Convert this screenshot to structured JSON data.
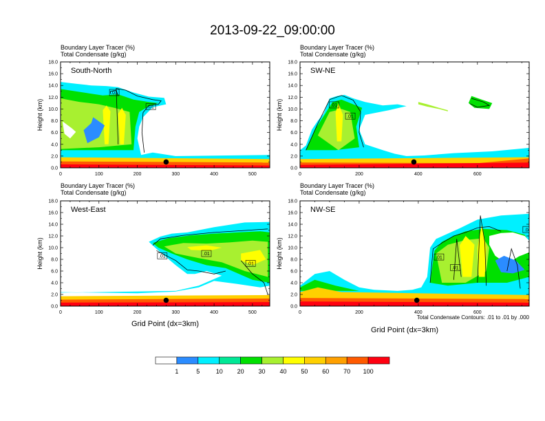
{
  "title": "2013-09-22_09:00:00",
  "panel_header": {
    "line1": "Boundary Layer Tracer   (%)",
    "line2": "Total Condensate   (g/kg)"
  },
  "ylabel": "Height (km)",
  "xlabel": "Grid Point (dx=3km)",
  "contour_note": "Total Condensate Contours: .01 to .01 by .000",
  "contour_label": ".01",
  "colorbar": {
    "colors": [
      "#ffffff",
      "#2b8cff",
      "#00f0ff",
      "#00e896",
      "#00e000",
      "#a8f030",
      "#ffff00",
      "#ffd000",
      "#ffa000",
      "#ff5a00",
      "#ff0010"
    ],
    "labels": [
      "1",
      "5",
      "10",
      "20",
      "30",
      "40",
      "50",
      "60",
      "70",
      "100"
    ]
  },
  "chart_data": [
    {
      "type": "heatmap",
      "name": "South-North",
      "xlim": [
        0,
        545
      ],
      "ylim": [
        0,
        18
      ],
      "xticks": [
        0,
        100,
        200,
        300,
        400,
        500
      ],
      "yticks": [
        "0.0",
        "2.0",
        "4.0",
        "6.0",
        "8.0",
        "10.0",
        "12.0",
        "14.0",
        "16.0",
        "18.0"
      ],
      "marker": {
        "x": 275,
        "y": 1.0
      },
      "contour_labels": [
        {
          "x": 140,
          "y": 12.8
        },
        {
          "x": 235,
          "y": 10.4
        }
      ]
    },
    {
      "type": "heatmap",
      "name": "SW-NE",
      "xlim": [
        0,
        775
      ],
      "ylim": [
        0,
        18
      ],
      "xticks": [
        0,
        200,
        400,
        600
      ],
      "yticks": [
        "0.0",
        "2.0",
        "4.0",
        "6.0",
        "8.0",
        "10.0",
        "12.0",
        "14.0",
        "16.0",
        "18.0"
      ],
      "marker": {
        "x": 385,
        "y": 1.0
      },
      "contour_labels": [
        {
          "x": 115,
          "y": 10.7
        },
        {
          "x": 170,
          "y": 8.8
        }
      ]
    },
    {
      "type": "heatmap",
      "name": "West-East",
      "xlim": [
        0,
        545
      ],
      "ylim": [
        0,
        18
      ],
      "xticks": [
        0,
        100,
        200,
        300,
        400,
        500
      ],
      "yticks": [
        "0.0",
        "2.0",
        "4.0",
        "6.0",
        "8.0",
        "10.0",
        "12.0",
        "14.0",
        "16.0",
        "18.0"
      ],
      "marker": {
        "x": 275,
        "y": 1.0
      },
      "contour_labels": [
        {
          "x": 265,
          "y": 8.6
        },
        {
          "x": 380,
          "y": 9.0
        },
        {
          "x": 495,
          "y": 7.3
        }
      ]
    },
    {
      "type": "heatmap",
      "name": "NW-SE",
      "xlim": [
        0,
        775
      ],
      "ylim": [
        0,
        18
      ],
      "xticks": [
        0,
        200,
        400,
        600
      ],
      "yticks": [
        "0.0",
        "2.0",
        "4.0",
        "6.0",
        "8.0",
        "10.0",
        "12.0",
        "14.0",
        "16.0",
        "18.0"
      ],
      "marker": {
        "x": 395,
        "y": 1.0
      },
      "contour_labels": [
        {
          "x": 470,
          "y": 8.4
        },
        {
          "x": 525,
          "y": 6.6
        },
        {
          "x": 770,
          "y": 13.1
        }
      ]
    }
  ]
}
